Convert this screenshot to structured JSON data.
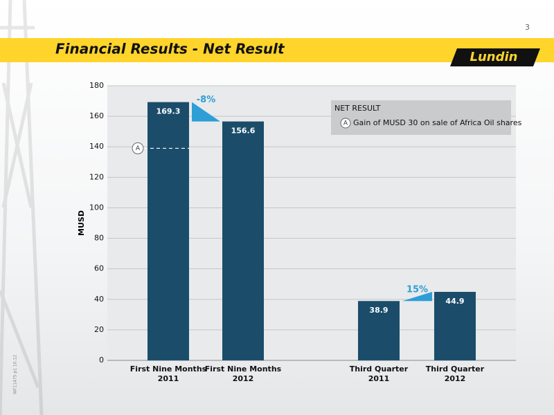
{
  "page_number": "3",
  "side_code": "WF11475 p1 10.12",
  "logo": "Lundin",
  "chart_data": {
    "type": "bar",
    "title": "Financial Results - Net Result",
    "y_label": "MUSD",
    "categories": [
      "First Nine Months\n2011",
      "First Nine Months\n2012",
      "Third Quarter\n2011",
      "Third Quarter\n2012"
    ],
    "values": [
      169.3,
      156.6,
      38.9,
      44.9
    ],
    "color": "#1b4d6b",
    "change_color": "#2e9ed6",
    "change_labels": [
      "-8%",
      "15%"
    ],
    "ylim": [
      0,
      180
    ],
    "yticks": [
      0,
      20,
      40,
      60,
      80,
      100,
      120,
      140,
      160,
      180
    ],
    "grid": true,
    "legend": {
      "title": "NET RESULT",
      "marker": "A",
      "text": "Gain of MUSD 30 on sale of Africa Oil shares"
    },
    "marker": {
      "label": "A",
      "value": 139
    }
  }
}
